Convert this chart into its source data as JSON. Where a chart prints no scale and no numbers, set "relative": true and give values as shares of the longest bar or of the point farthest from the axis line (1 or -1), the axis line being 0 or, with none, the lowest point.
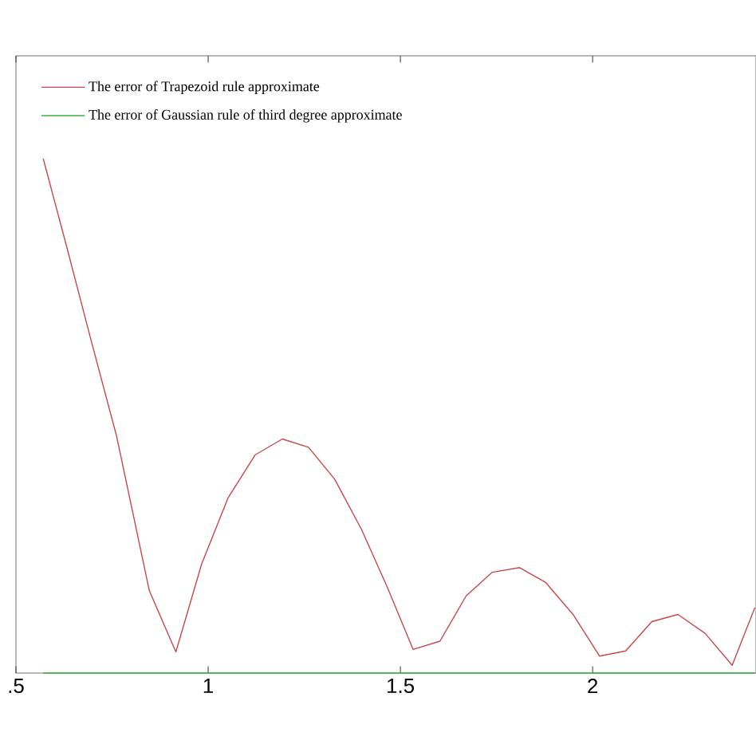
{
  "chart_data": {
    "type": "line",
    "relative": true,
    "x": [
      0.571,
      0.633,
      0.694,
      0.762,
      0.847,
      0.916,
      0.983,
      1.052,
      1.122,
      1.193,
      1.261,
      1.329,
      1.399,
      1.467,
      1.533,
      1.603,
      1.671,
      1.739,
      1.81,
      1.878,
      1.949,
      2.018,
      2.086,
      2.154,
      2.222,
      2.293,
      2.363,
      2.422
    ],
    "series": [
      {
        "name": "The error of Trapezoid rule approximate",
        "color": "#c8474a",
        "values": [
          1.0,
          0.826,
          0.651,
          0.46,
          0.16,
          0.041,
          0.212,
          0.341,
          0.424,
          0.455,
          0.439,
          0.377,
          0.279,
          0.165,
          0.046,
          0.062,
          0.15,
          0.196,
          0.205,
          0.176,
          0.114,
          0.033,
          0.043,
          0.1,
          0.114,
          0.077,
          0.015,
          0.127
        ]
      },
      {
        "name": "The error of Gaussian rule of third degree approximate",
        "color": "#3cb043",
        "values": [
          0,
          0,
          0,
          0,
          0,
          0,
          0,
          0,
          0,
          0,
          0,
          0,
          0,
          0,
          0,
          0,
          0,
          0,
          0,
          0,
          0,
          0,
          0,
          0,
          0,
          0,
          0,
          0
        ]
      }
    ],
    "xlim": [
      0.5,
      2.425
    ],
    "xticks": [
      {
        "value": 0.5,
        "label": ".5"
      },
      1,
      1.5,
      2
    ],
    "tick_labels": "x",
    "legend": "top",
    "grid": false,
    "marker": "none",
    "line_style": "solid"
  }
}
